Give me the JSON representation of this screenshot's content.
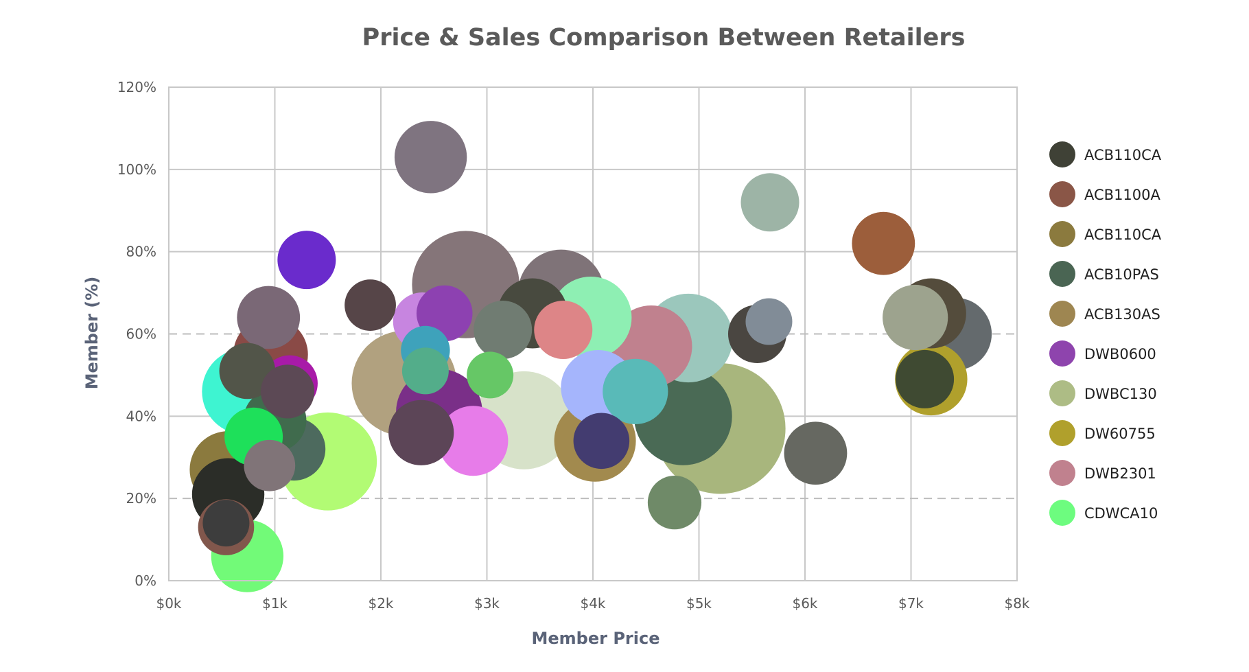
{
  "chart_data": {
    "type": "scatter",
    "subtype": "bubble",
    "title": "Price & Sales Comparison Between Retailers",
    "xlabel": "Member Price",
    "ylabel": "Member (%)",
    "xlim": [
      0,
      8000
    ],
    "ylim": [
      0,
      120
    ],
    "x_ticks": [
      {
        "value": 0,
        "label": "$0k"
      },
      {
        "value": 1000,
        "label": "$1k"
      },
      {
        "value": 2000,
        "label": "$2k"
      },
      {
        "value": 3000,
        "label": "$3k"
      },
      {
        "value": 4000,
        "label": "$4k"
      },
      {
        "value": 5000,
        "label": "$5k"
      },
      {
        "value": 6000,
        "label": "$6k"
      },
      {
        "value": 7000,
        "label": "$7k"
      },
      {
        "value": 8000,
        "label": "$8k"
      }
    ],
    "y_ticks": [
      {
        "value": 0,
        "label": "0%"
      },
      {
        "value": 20,
        "label": "20%"
      },
      {
        "value": 40,
        "label": "40%"
      },
      {
        "value": 60,
        "label": "60%"
      },
      {
        "value": 80,
        "label": "80%"
      },
      {
        "value": 100,
        "label": "100%"
      },
      {
        "value": 120,
        "label": "120%"
      }
    ],
    "grid": {
      "vertical": "solid",
      "horizontal": "dashed"
    },
    "legend_position": "right",
    "legend": [
      {
        "name": "ACB110CA",
        "color": "#3f4136"
      },
      {
        "name": "ACB1100A",
        "color": "#8a5647"
      },
      {
        "name": "ACB110CA",
        "color": "#8b7a3e"
      },
      {
        "name": "ACB10PAS",
        "color": "#4a6553"
      },
      {
        "name": "ACB130AS",
        "color": "#9e8651"
      },
      {
        "name": "DWB0600",
        "color": "#8e44ad"
      },
      {
        "name": "DWBC130",
        "color": "#adbc85"
      },
      {
        "name": "DW60755",
        "color": "#b0a02c"
      },
      {
        "name": "DWB2301",
        "color": "#c0818e"
      },
      {
        "name": "CDWCA10",
        "color": "#6dfc7f"
      }
    ],
    "points": [
      {
        "x": 5200,
        "y": 37,
        "size": 56,
        "color": "#a8b67d"
      },
      {
        "x": 2800,
        "y": 72,
        "size": 46,
        "color": "#857579"
      },
      {
        "x": 2220,
        "y": 48,
        "size": 45,
        "color": "#b1a17f"
      },
      {
        "x": 3350,
        "y": 39,
        "size": 42,
        "color": "#d7e2c9"
      },
      {
        "x": 4850,
        "y": 40,
        "size": 42,
        "color": "#4a6a55"
      },
      {
        "x": 1500,
        "y": 29,
        "size": 42,
        "color": "#b2fb74"
      },
      {
        "x": 4900,
        "y": 59,
        "size": 38,
        "color": "#9bc7bc"
      },
      {
        "x": 2550,
        "y": 41,
        "size": 37,
        "color": "#7a2f88"
      },
      {
        "x": 720,
        "y": 46,
        "size": 37,
        "color": "#3ef4d1"
      },
      {
        "x": 3700,
        "y": 70,
        "size": 37,
        "color": "#7f7378"
      },
      {
        "x": 4550,
        "y": 57,
        "size": 35,
        "color": "#c0818e"
      },
      {
        "x": 4020,
        "y": 34,
        "size": 35,
        "color": "#a28a4e"
      },
      {
        "x": 3980,
        "y": 64,
        "size": 35,
        "color": "#8eefb3"
      },
      {
        "x": 560,
        "y": 27,
        "size": 33,
        "color": "#8b7a3e"
      },
      {
        "x": 960,
        "y": 55,
        "size": 32,
        "color": "#8a4a46"
      },
      {
        "x": 4050,
        "y": 47,
        "size": 32,
        "color": "#a5b5fc"
      },
      {
        "x": 2470,
        "y": 103,
        "size": 31,
        "color": "#7f7480"
      },
      {
        "x": 7420,
        "y": 60,
        "size": 31,
        "color": "#646a6d"
      },
      {
        "x": 7190,
        "y": 49,
        "size": 31,
        "color": "#b0a02c"
      },
      {
        "x": 560,
        "y": 21,
        "size": 31,
        "color": "#2b2d28"
      },
      {
        "x": 740,
        "y": 6,
        "size": 31,
        "color": "#72fa78"
      },
      {
        "x": 2870,
        "y": 34,
        "size": 30,
        "color": "#e77ce9"
      },
      {
        "x": 7190,
        "y": 65,
        "size": 30,
        "color": "#544c3c"
      },
      {
        "x": 3430,
        "y": 65,
        "size": 30,
        "color": "#484a3f"
      },
      {
        "x": 2380,
        "y": 36,
        "size": 28,
        "color": "#5c4557"
      },
      {
        "x": 7040,
        "y": 64,
        "size": 28,
        "color": "#9da38e"
      },
      {
        "x": 4400,
        "y": 46,
        "size": 28,
        "color": "#59bab8"
      },
      {
        "x": 1180,
        "y": 32,
        "size": 27,
        "color": "#4d6a5e"
      },
      {
        "x": 6100,
        "y": 31,
        "size": 27,
        "color": "#666861"
      },
      {
        "x": 940,
        "y": 64,
        "size": 27,
        "color": "#7a6876"
      },
      {
        "x": 6740,
        "y": 82,
        "size": 27,
        "color": "#9c5e3b"
      },
      {
        "x": 1000,
        "y": 39,
        "size": 27,
        "color": "#406b4d"
      },
      {
        "x": 5550,
        "y": 60,
        "size": 25,
        "color": "#4a4641"
      },
      {
        "x": 800,
        "y": 35,
        "size": 25,
        "color": "#1ee05a"
      },
      {
        "x": 5670,
        "y": 92,
        "size": 25,
        "color": "#9db4a6"
      },
      {
        "x": 3150,
        "y": 61,
        "size": 25,
        "color": "#707c72"
      },
      {
        "x": 1300,
        "y": 78,
        "size": 25,
        "color": "#6a2bcc"
      },
      {
        "x": 3720,
        "y": 61,
        "size": 25,
        "color": "#dd8587"
      },
      {
        "x": 7130,
        "y": 49,
        "size": 25,
        "color": "#3f4a32"
      },
      {
        "x": 2390,
        "y": 63,
        "size": 25,
        "color": "#c785e0"
      },
      {
        "x": 1140,
        "y": 48,
        "size": 24,
        "color": "#a81aa8"
      },
      {
        "x": 540,
        "y": 13,
        "size": 24,
        "color": "#81574c"
      },
      {
        "x": 4080,
        "y": 34,
        "size": 24,
        "color": "#433c70"
      },
      {
        "x": 740,
        "y": 51,
        "size": 24,
        "color": "#525549"
      },
      {
        "x": 2600,
        "y": 65,
        "size": 24,
        "color": "#8d41b1"
      },
      {
        "x": 1120,
        "y": 46,
        "size": 23,
        "color": "#5c4955"
      },
      {
        "x": 4770,
        "y": 19,
        "size": 23,
        "color": "#6f8a68"
      },
      {
        "x": 1900,
        "y": 67,
        "size": 22,
        "color": "#564548"
      },
      {
        "x": 2420,
        "y": 56,
        "size": 21,
        "color": "#3ea2bb"
      },
      {
        "x": 950,
        "y": 28,
        "size": 22,
        "color": "#807478"
      },
      {
        "x": 3030,
        "y": 50,
        "size": 20,
        "color": "#66c766"
      },
      {
        "x": 5660,
        "y": 63,
        "size": 20,
        "color": "#818c97"
      },
      {
        "x": 2420,
        "y": 51,
        "size": 20,
        "color": "#53ad8a"
      },
      {
        "x": 540,
        "y": 14,
        "size": 20,
        "color": "#3d3d3d"
      }
    ]
  }
}
